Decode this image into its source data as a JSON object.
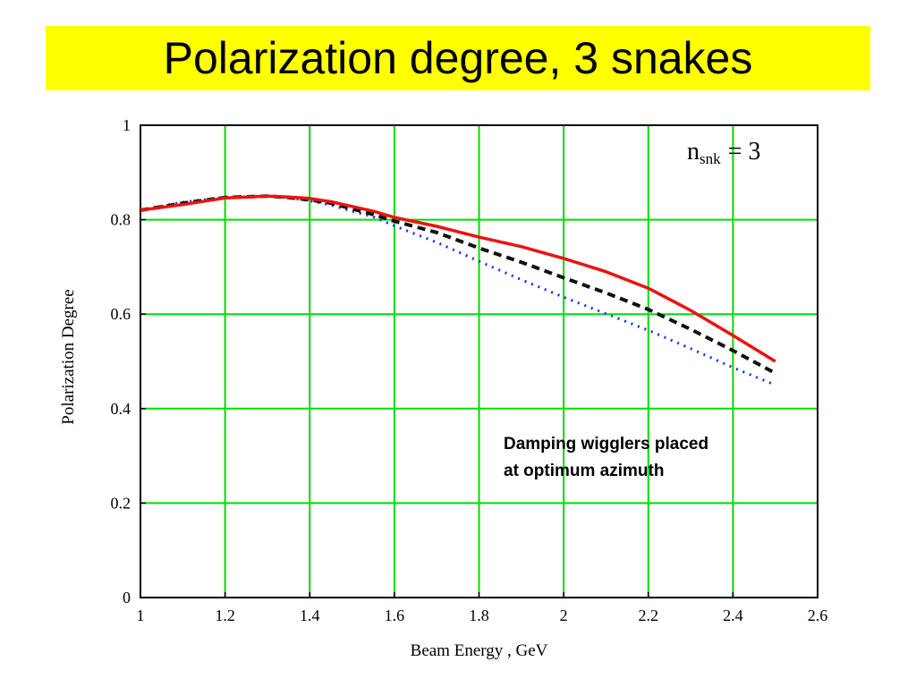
{
  "slide": {
    "title": "Polarization degree, 3 snakes",
    "title_bg": "#ffff00"
  },
  "chart_data": {
    "type": "line",
    "title": "",
    "xlabel": "Beam Energy , GeV",
    "ylabel": "Polarization Degree",
    "xlim": [
      1,
      2.6
    ],
    "ylim": [
      0,
      1
    ],
    "xticks": [
      1,
      1.2,
      1.4,
      1.6,
      1.8,
      2,
      2.2,
      2.4,
      2.6
    ],
    "xtick_labels": [
      "1",
      "1.2",
      "1.4",
      "1.6",
      "1.8",
      "2",
      "2.2",
      "2.4",
      "2.6"
    ],
    "yticks": [
      0,
      0.2,
      0.4,
      0.6,
      0.8,
      1
    ],
    "ytick_labels": [
      "0",
      "0.2",
      "0.4",
      "0.6",
      "0.8",
      "1"
    ],
    "grid": true,
    "grid_color": "#00dd00",
    "annotations": {
      "nsnk_base": "n",
      "nsnk_sub": "snk",
      "nsnk_rest": "= 3",
      "note_line1": "Damping wigglers placed",
      "note_line2": "at optimum azimuth"
    },
    "x": [
      1.0,
      1.1,
      1.2,
      1.3,
      1.35,
      1.4,
      1.45,
      1.5,
      1.55,
      1.6,
      1.7,
      1.8,
      1.9,
      2.0,
      2.1,
      2.2,
      2.3,
      2.4,
      2.5
    ],
    "series": [
      {
        "color": "#ee1111",
        "style": "solid",
        "values": [
          0.82,
          0.832,
          0.846,
          0.85,
          0.848,
          0.845,
          0.838,
          0.828,
          0.818,
          0.805,
          0.786,
          0.763,
          0.743,
          0.718,
          0.69,
          0.655,
          0.608,
          0.555,
          0.5
        ]
      },
      {
        "color": "#111111",
        "style": "dashed",
        "values": [
          0.82,
          0.835,
          0.847,
          0.85,
          0.847,
          0.842,
          0.835,
          0.823,
          0.811,
          0.797,
          0.773,
          0.74,
          0.71,
          0.677,
          0.645,
          0.61,
          0.568,
          0.523,
          0.475
        ]
      },
      {
        "color": "#1133ee",
        "style": "dotted",
        "values": [
          0.82,
          0.837,
          0.848,
          0.85,
          0.846,
          0.84,
          0.831,
          0.818,
          0.806,
          0.787,
          0.752,
          0.712,
          0.673,
          0.636,
          0.601,
          0.566,
          0.527,
          0.487,
          0.45
        ]
      }
    ]
  }
}
